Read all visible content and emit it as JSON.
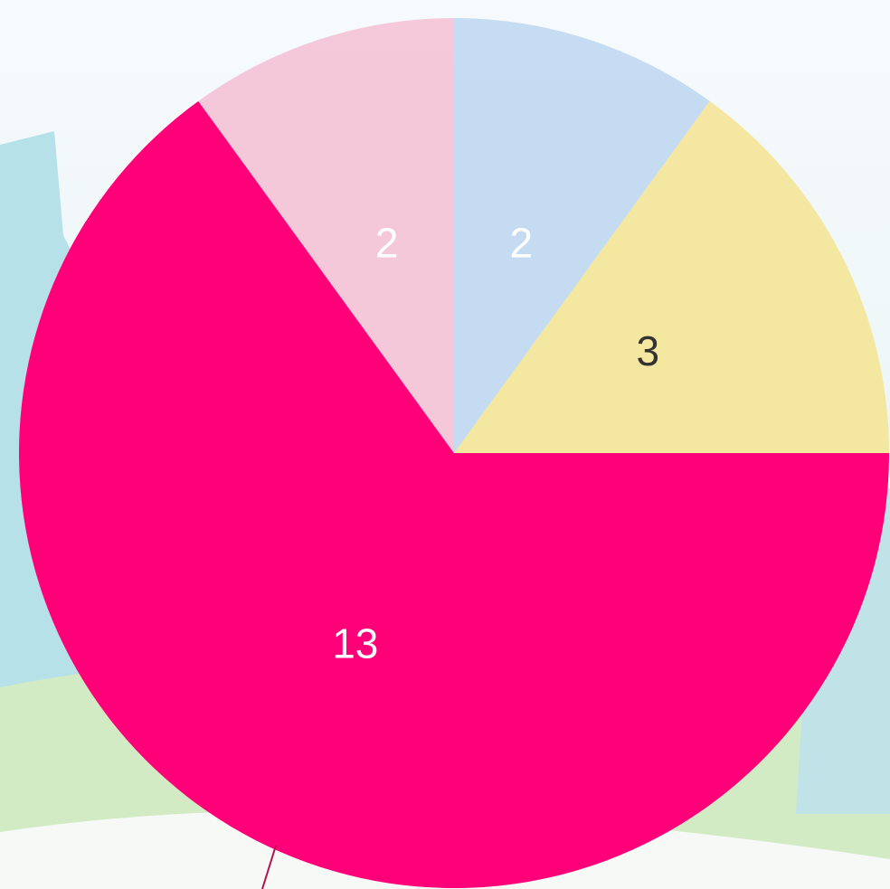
{
  "chart_data": {
    "type": "pie",
    "values": [
      2,
      3,
      13,
      2
    ],
    "colors": [
      "#bcd6f0",
      "#f4e491",
      "#ff0078",
      "#f4c0d2"
    ],
    "label_colors": [
      "#ffffff",
      "#333333",
      "#ffffff",
      "#ffffff"
    ]
  }
}
